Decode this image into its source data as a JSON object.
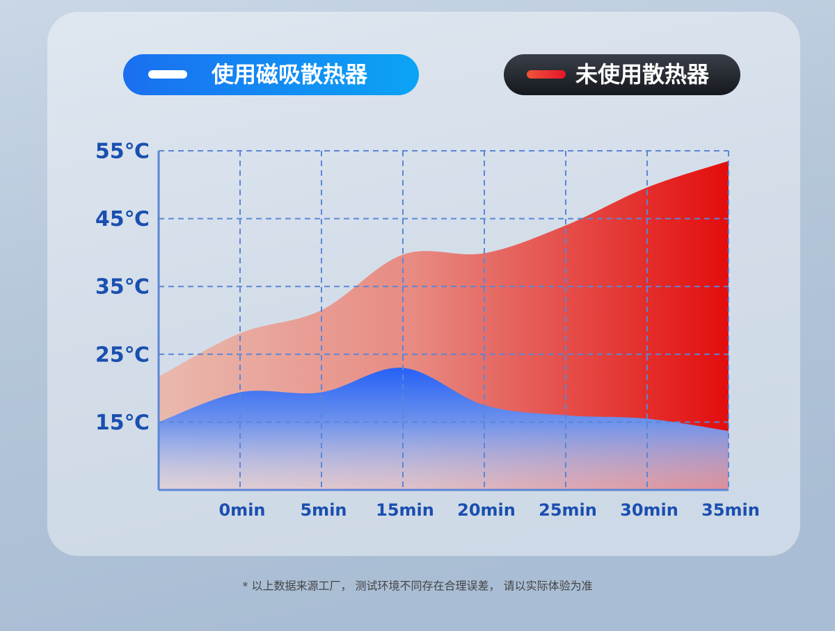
{
  "chart_data": {
    "type": "area",
    "categories": [
      null,
      "0min",
      "5min",
      "15min",
      "20min",
      "25min",
      "30min",
      "35min"
    ],
    "series": [
      {
        "name": "未使用散热器",
        "color": "#e30d0d",
        "values": [
          21.7,
          28.1,
          31.5,
          39.7,
          39.9,
          44,
          49.6,
          53.5
        ]
      },
      {
        "name": "使用磁吸散热器",
        "color": "#2a66f5",
        "values": [
          15,
          19.4,
          19.4,
          23,
          17.5,
          16,
          15.5,
          13.7
        ]
      }
    ],
    "ylim": [
      5,
      55
    ],
    "yticks": [
      {
        "value": 15,
        "label": "15℃"
      },
      {
        "value": 25,
        "label": "25℃"
      },
      {
        "value": 35,
        "label": "35℃"
      },
      {
        "value": 45,
        "label": "45℃"
      },
      {
        "value": 55,
        "label": "55℃"
      }
    ],
    "grid": true,
    "footnote": "* 以上数据来源工厂， 测试环境不同存在合理误差， 请以实际体验为准"
  }
}
